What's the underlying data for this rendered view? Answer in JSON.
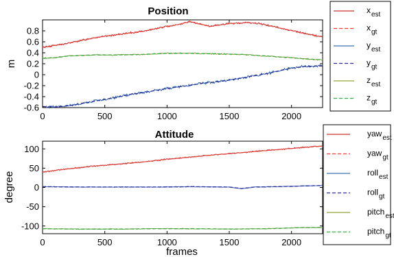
{
  "colors": {
    "est_red": "#c9302c",
    "gt_red": "#e8403a",
    "est_blue": "#3b6fb0",
    "gt_blue": "#2a2a9a",
    "est_olive": "#8fa33a",
    "gt_green": "#3aaa4a"
  },
  "chart_data": [
    {
      "type": "line",
      "title": "Position",
      "xlabel": "",
      "ylabel": "m",
      "xlim": [
        0,
        2250
      ],
      "ylim": [
        -0.6,
        1.0
      ],
      "xticks": [
        "0",
        "500",
        "1000",
        "1500",
        "2000"
      ],
      "yticks": [
        "-0.6",
        "-0.4",
        "-0.2",
        "0",
        "0.2",
        "0.4",
        "0.6",
        "0.8"
      ],
      "grid": false,
      "legend_position": "right-outside",
      "series": [
        {
          "name_main": "x",
          "name_sub": "est",
          "style": "solid",
          "color": "#c9302c",
          "noise": 0.012,
          "x": [
            0,
            200,
            400,
            600,
            800,
            1000,
            1100,
            1180,
            1250,
            1350,
            1450,
            1550,
            1650,
            1750,
            1850,
            1950,
            2050,
            2150,
            2250
          ],
          "y": [
            0.5,
            0.57,
            0.67,
            0.73,
            0.79,
            0.88,
            0.92,
            0.97,
            0.93,
            0.88,
            0.92,
            0.94,
            0.95,
            0.93,
            0.88,
            0.83,
            0.78,
            0.73,
            0.69
          ]
        },
        {
          "name_main": "x",
          "name_sub": "gt",
          "style": "dashed",
          "color": "#e8403a",
          "noise": 0,
          "x": [
            0,
            200,
            400,
            600,
            800,
            1000,
            1100,
            1180,
            1250,
            1350,
            1450,
            1550,
            1650,
            1750,
            1850,
            1950,
            2050,
            2150,
            2250
          ],
          "y": [
            0.5,
            0.57,
            0.67,
            0.73,
            0.79,
            0.88,
            0.92,
            0.97,
            0.93,
            0.88,
            0.92,
            0.94,
            0.95,
            0.93,
            0.88,
            0.83,
            0.78,
            0.73,
            0.69
          ]
        },
        {
          "name_main": "y",
          "name_sub": "est",
          "style": "solid",
          "color": "#3b6fb0",
          "noise": 0.018,
          "x": [
            0,
            100,
            200,
            300,
            400,
            500,
            600,
            700,
            800,
            900,
            1000,
            1100,
            1200,
            1300,
            1400,
            1500,
            1600,
            1700,
            1800,
            1900,
            2000,
            2100,
            2250
          ],
          "y": [
            -0.58,
            -0.59,
            -0.57,
            -0.53,
            -0.49,
            -0.45,
            -0.41,
            -0.36,
            -0.33,
            -0.29,
            -0.25,
            -0.22,
            -0.19,
            -0.15,
            -0.13,
            -0.1,
            -0.06,
            -0.02,
            0.02,
            0.07,
            0.12,
            0.15,
            0.16
          ]
        },
        {
          "name_main": "y",
          "name_sub": "gt",
          "style": "dashed",
          "color": "#2a2a9a",
          "noise": 0,
          "x": [
            0,
            100,
            200,
            300,
            400,
            500,
            600,
            700,
            800,
            900,
            1000,
            1100,
            1200,
            1300,
            1400,
            1500,
            1600,
            1700,
            1800,
            1900,
            2000,
            2100,
            2250
          ],
          "y": [
            -0.58,
            -0.59,
            -0.57,
            -0.53,
            -0.49,
            -0.45,
            -0.41,
            -0.36,
            -0.33,
            -0.29,
            -0.25,
            -0.22,
            -0.19,
            -0.15,
            -0.13,
            -0.1,
            -0.06,
            -0.02,
            0.02,
            0.07,
            0.12,
            0.15,
            0.16
          ]
        },
        {
          "name_main": "z",
          "name_sub": "est",
          "style": "solid",
          "color": "#8fa33a",
          "noise": 0.008,
          "x": [
            0,
            100,
            200,
            400,
            600,
            800,
            1000,
            1200,
            1400,
            1600,
            1800,
            2000,
            2100,
            2250
          ],
          "y": [
            0.3,
            0.31,
            0.34,
            0.36,
            0.36,
            0.37,
            0.39,
            0.39,
            0.38,
            0.37,
            0.34,
            0.31,
            0.29,
            0.27
          ]
        },
        {
          "name_main": "z",
          "name_sub": "gt",
          "style": "dashed",
          "color": "#3aaa4a",
          "noise": 0,
          "x": [
            0,
            100,
            200,
            400,
            600,
            800,
            1000,
            1200,
            1400,
            1600,
            1800,
            2000,
            2100,
            2250
          ],
          "y": [
            0.3,
            0.31,
            0.34,
            0.36,
            0.36,
            0.37,
            0.39,
            0.39,
            0.38,
            0.37,
            0.34,
            0.31,
            0.29,
            0.27
          ]
        }
      ]
    },
    {
      "type": "line",
      "title": "Attitude",
      "xlabel": "frames",
      "ylabel": "degree",
      "xlim": [
        0,
        2250
      ],
      "ylim": [
        -120,
        120
      ],
      "xticks": [
        "0",
        "500",
        "1000",
        "1500",
        "2000"
      ],
      "yticks": [
        "-100",
        "-50",
        "0",
        "50",
        "100"
      ],
      "grid": false,
      "legend_position": "right-outside",
      "series": [
        {
          "name_main": "yaw",
          "name_sub": "est",
          "style": "solid",
          "color": "#c9302c",
          "noise": 1.2,
          "x": [
            0,
            200,
            400,
            600,
            800,
            1000,
            1200,
            1400,
            1600,
            1800,
            2000,
            2100,
            2250
          ],
          "y": [
            40,
            48,
            55,
            60,
            66,
            73,
            79,
            85,
            90,
            96,
            101,
            104,
            107
          ]
        },
        {
          "name_main": "yaw",
          "name_sub": "gt",
          "style": "dashed",
          "color": "#e8403a",
          "noise": 0,
          "x": [
            0,
            200,
            400,
            600,
            800,
            1000,
            1200,
            1400,
            1600,
            1800,
            2000,
            2100,
            2250
          ],
          "y": [
            40,
            48,
            55,
            60,
            66,
            73,
            79,
            85,
            90,
            96,
            101,
            104,
            107
          ]
        },
        {
          "name_main": "roll",
          "name_sub": "est",
          "style": "solid",
          "color": "#3b6fb0",
          "noise": 0.6,
          "x": [
            0,
            300,
            600,
            900,
            1200,
            1500,
            1600,
            1700,
            2000,
            2250
          ],
          "y": [
            2,
            1,
            1,
            1,
            2,
            1,
            -3,
            1,
            3,
            5
          ]
        },
        {
          "name_main": "roll",
          "name_sub": "gt",
          "style": "dashed",
          "color": "#2a2a9a",
          "noise": 0,
          "x": [
            0,
            300,
            600,
            900,
            1200,
            1500,
            1600,
            1700,
            2000,
            2250
          ],
          "y": [
            2,
            1,
            1,
            1,
            2,
            1,
            -3,
            1,
            3,
            5
          ]
        },
        {
          "name_main": "pitch",
          "name_sub": "est",
          "style": "solid",
          "color": "#8fa33a",
          "noise": 0.7,
          "x": [
            0,
            300,
            600,
            900,
            1200,
            1500,
            1800,
            2100,
            2250
          ],
          "y": [
            -107,
            -108,
            -108,
            -107,
            -107,
            -108,
            -107,
            -104,
            -104
          ]
        },
        {
          "name_main": "pitch",
          "name_sub": "gt",
          "style": "dashed",
          "color": "#3aaa4a",
          "noise": 0,
          "x": [
            0,
            300,
            600,
            900,
            1200,
            1500,
            1800,
            2100,
            2250
          ],
          "y": [
            -107,
            -108,
            -108,
            -107,
            -107,
            -108,
            -107,
            -104,
            -104
          ]
        }
      ]
    }
  ]
}
